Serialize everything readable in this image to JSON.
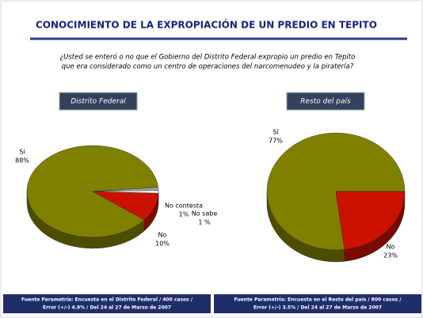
{
  "header": {
    "title": "CONOCIMIENTO DE LA EXPROPIACIÓN DE UN PREDIO EN TEPITO",
    "question": [
      "¿Usted se enteró o no que el Gobierno del Distrito Federal expropio un predio en Tepito",
      "que era considerado como un centro de operaciones del narcomenudeo y la piratería?"
    ]
  },
  "chart_data": [
    {
      "type": "pie",
      "title": "Distrito Federal",
      "categories": [
        "Sí",
        "No",
        "No sabe",
        "No contesta"
      ],
      "values": [
        88,
        10,
        1,
        1
      ],
      "value_labels": [
        "88%",
        "10%",
        "1 %",
        "1%"
      ],
      "colors": [
        "#808000",
        "#cc1100",
        "#f0f0f0",
        "#a8a8a8"
      ],
      "source": [
        "Fuente Parametría: Encuesta en el Distrito Federal / 400 casos /",
        "Error (+/-) 4.9% / Del 24 al 27 de Marzo de 2007"
      ]
    },
    {
      "type": "pie",
      "title": "Resto del país",
      "categories": [
        "Sí",
        "No"
      ],
      "values": [
        77,
        23
      ],
      "value_labels": [
        "77%",
        "23%"
      ],
      "colors": [
        "#808000",
        "#cc1100"
      ],
      "source": [
        "Fuente Parametría: Encuesta en el Resto del país / 800 casos /",
        "Error (+/-) 3.5% / Del 24 al 27 de Marzo de 2007"
      ]
    }
  ]
}
